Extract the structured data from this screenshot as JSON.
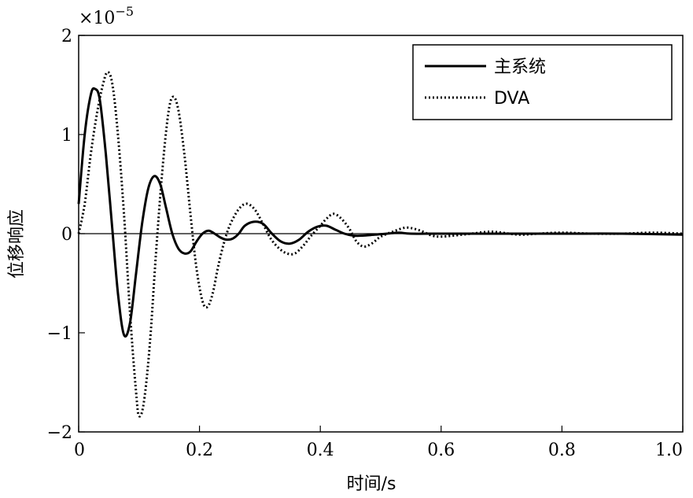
{
  "chart_data": {
    "type": "line",
    "xlabel": "时间/s",
    "ylabel": "位移响应",
    "xlim": [
      0,
      1.0
    ],
    "ylim": [
      -2,
      2
    ],
    "y_multiplier": {
      "base": "×10",
      "exponent": "−5"
    },
    "x_ticks": [
      {
        "value": 0,
        "label": "0"
      },
      {
        "value": 0.2,
        "label": "0.2"
      },
      {
        "value": 0.4,
        "label": "0.4"
      },
      {
        "value": 0.6,
        "label": "0.6"
      },
      {
        "value": 0.8,
        "label": "0.8"
      },
      {
        "value": 1.0,
        "label": "1.0"
      }
    ],
    "y_ticks": [
      {
        "value": 2,
        "label": "2"
      },
      {
        "value": 1,
        "label": "1"
      },
      {
        "value": 0,
        "label": "0"
      },
      {
        "value": -1,
        "label": "−1"
      },
      {
        "value": -2,
        "label": "−2"
      }
    ],
    "zero_line": true,
    "grid": false,
    "legend_position": "top-right",
    "series": [
      {
        "name": "主系统",
        "style": "solid",
        "color": "#000000",
        "points": [
          [
            0,
            0.3
          ],
          [
            0.01,
            1.0
          ],
          [
            0.02,
            1.4
          ],
          [
            0.027,
            1.46
          ],
          [
            0.035,
            1.35
          ],
          [
            0.045,
            0.8
          ],
          [
            0.055,
            0.1
          ],
          [
            0.065,
            -0.6
          ],
          [
            0.075,
            -1.02
          ],
          [
            0.085,
            -0.9
          ],
          [
            0.095,
            -0.4
          ],
          [
            0.105,
            0.1
          ],
          [
            0.115,
            0.45
          ],
          [
            0.125,
            0.58
          ],
          [
            0.135,
            0.5
          ],
          [
            0.145,
            0.25
          ],
          [
            0.155,
            0.0
          ],
          [
            0.165,
            -0.15
          ],
          [
            0.175,
            -0.2
          ],
          [
            0.185,
            -0.18
          ],
          [
            0.195,
            -0.08
          ],
          [
            0.205,
            0.0
          ],
          [
            0.215,
            0.03
          ],
          [
            0.225,
            0.0
          ],
          [
            0.235,
            -0.04
          ],
          [
            0.245,
            -0.06
          ],
          [
            0.255,
            -0.05
          ],
          [
            0.265,
            0.0
          ],
          [
            0.275,
            0.08
          ],
          [
            0.29,
            0.12
          ],
          [
            0.305,
            0.1
          ],
          [
            0.32,
            0.0
          ],
          [
            0.335,
            -0.08
          ],
          [
            0.35,
            -0.1
          ],
          [
            0.365,
            -0.06
          ],
          [
            0.38,
            0.02
          ],
          [
            0.395,
            0.07
          ],
          [
            0.41,
            0.08
          ],
          [
            0.425,
            0.04
          ],
          [
            0.44,
            0.0
          ],
          [
            0.455,
            -0.02
          ],
          [
            0.47,
            -0.02
          ],
          [
            0.49,
            -0.01
          ],
          [
            0.51,
            0.0
          ],
          [
            0.53,
            0.01
          ],
          [
            0.55,
            0.0
          ],
          [
            0.6,
            0.0
          ],
          [
            0.7,
            0.0
          ],
          [
            0.8,
            0.0
          ],
          [
            0.9,
            0.0
          ],
          [
            1.0,
            -0.01
          ]
        ]
      },
      {
        "name": "DVA",
        "style": "dotted",
        "color": "#000000",
        "points": [
          [
            0,
            0.0
          ],
          [
            0.01,
            0.3
          ],
          [
            0.02,
            0.8
          ],
          [
            0.03,
            1.2
          ],
          [
            0.04,
            1.5
          ],
          [
            0.048,
            1.63
          ],
          [
            0.056,
            1.5
          ],
          [
            0.065,
            1.0
          ],
          [
            0.075,
            0.2
          ],
          [
            0.085,
            -0.8
          ],
          [
            0.095,
            -1.6
          ],
          [
            0.1,
            -1.84
          ],
          [
            0.108,
            -1.7
          ],
          [
            0.118,
            -1.1
          ],
          [
            0.128,
            -0.2
          ],
          [
            0.138,
            0.6
          ],
          [
            0.148,
            1.2
          ],
          [
            0.156,
            1.38
          ],
          [
            0.165,
            1.25
          ],
          [
            0.175,
            0.8
          ],
          [
            0.185,
            0.2
          ],
          [
            0.195,
            -0.35
          ],
          [
            0.205,
            -0.68
          ],
          [
            0.213,
            -0.74
          ],
          [
            0.222,
            -0.6
          ],
          [
            0.232,
            -0.3
          ],
          [
            0.245,
            0.0
          ],
          [
            0.258,
            0.18
          ],
          [
            0.27,
            0.28
          ],
          [
            0.28,
            0.3
          ],
          [
            0.292,
            0.24
          ],
          [
            0.305,
            0.1
          ],
          [
            0.318,
            -0.05
          ],
          [
            0.332,
            -0.15
          ],
          [
            0.345,
            -0.2
          ],
          [
            0.358,
            -0.2
          ],
          [
            0.372,
            -0.12
          ],
          [
            0.385,
            -0.02
          ],
          [
            0.4,
            0.08
          ],
          [
            0.41,
            0.15
          ],
          [
            0.422,
            0.2
          ],
          [
            0.435,
            0.15
          ],
          [
            0.448,
            0.05
          ],
          [
            0.46,
            -0.08
          ],
          [
            0.472,
            -0.13
          ],
          [
            0.485,
            -0.1
          ],
          [
            0.5,
            -0.03
          ],
          [
            0.52,
            0.02
          ],
          [
            0.54,
            0.06
          ],
          [
            0.555,
            0.05
          ],
          [
            0.57,
            0.02
          ],
          [
            0.585,
            -0.02
          ],
          [
            0.6,
            -0.03
          ],
          [
            0.62,
            -0.02
          ],
          [
            0.65,
            0.0
          ],
          [
            0.68,
            0.02
          ],
          [
            0.7,
            0.01
          ],
          [
            0.73,
            -0.01
          ],
          [
            0.76,
            0.0
          ],
          [
            0.8,
            0.01
          ],
          [
            0.85,
            0.0
          ],
          [
            0.9,
            0.0
          ],
          [
            0.95,
            0.01
          ],
          [
            1.0,
            0.0
          ]
        ]
      }
    ]
  }
}
